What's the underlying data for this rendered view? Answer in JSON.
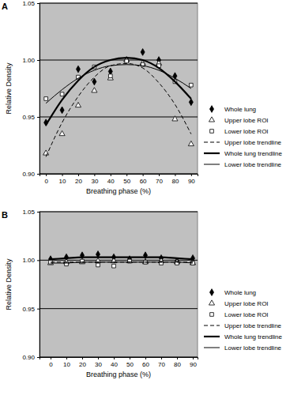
{
  "chart_data": [
    {
      "type": "scatter",
      "title": "A",
      "x_label": "Breathing phase (%)",
      "y_label": "Relative Density",
      "x": [
        0,
        10,
        20,
        30,
        40,
        50,
        60,
        70,
        80,
        90
      ],
      "xlim": [
        -4,
        94
      ],
      "xticks": [
        0,
        10,
        20,
        30,
        40,
        50,
        60,
        70,
        80,
        90
      ],
      "ylim": [
        0.9,
        1.05
      ],
      "yticks": [
        {
          "value": 0.9,
          "label": "0.90"
        },
        {
          "value": 0.95,
          "label": "0.95"
        },
        {
          "value": 1.0,
          "label": "1.00"
        },
        {
          "value": 1.05,
          "label": "1.05"
        }
      ],
      "grid": true,
      "legend": "right",
      "series": [
        {
          "name": "Whole lung",
          "type": "scatter",
          "marker": "diamond",
          "color": "#000000",
          "values": [
            0.945,
            0.956,
            0.992,
            0.981,
            0.99,
            1.0,
            1.007,
            1.0,
            0.986,
            0.963
          ]
        },
        {
          "name": "Upper lobe ROI",
          "type": "scatter",
          "marker": "triangle-open",
          "color": "#000000",
          "values": [
            0.918,
            0.935,
            0.96,
            0.973,
            0.984,
            1.0,
            0.997,
            0.997,
            0.948,
            0.926
          ]
        },
        {
          "name": "Lower lobe ROI",
          "type": "scatter",
          "marker": "square-open",
          "color": "#000000",
          "values": [
            0.966,
            0.97,
            0.985,
            0.994,
            0.986,
            0.999,
            0.996,
            0.995,
            0.981,
            0.978
          ]
        },
        {
          "name": "Upper lobe trendline",
          "type": "line",
          "line_style": "dashed",
          "color": "#000000",
          "values": [
            0.915,
            0.945,
            0.968,
            0.985,
            0.995,
            0.997,
            0.993,
            0.98,
            0.961,
            0.935
          ]
        },
        {
          "name": "Whole lung trendline",
          "type": "line",
          "line_style": "thick",
          "color": "#000000",
          "values": [
            0.943,
            0.965,
            0.982,
            0.994,
            1.0,
            1.002,
            1.0,
            0.993,
            0.981,
            0.966
          ]
        },
        {
          "name": "Lower lobe trendline",
          "type": "line",
          "line_style": "solid",
          "color": "#000000",
          "values": [
            0.962,
            0.974,
            0.984,
            0.991,
            0.995,
            0.996,
            0.995,
            0.991,
            0.984,
            0.975
          ]
        }
      ]
    },
    {
      "type": "scatter",
      "title": "B",
      "x_label": "Breathing phase (%)",
      "y_label": "Relative Density",
      "x": [
        0,
        10,
        20,
        30,
        40,
        50,
        60,
        70,
        80,
        90
      ],
      "xlim": [
        -7,
        93
      ],
      "xticks": [
        0,
        10,
        20,
        30,
        40,
        50,
        60,
        70,
        80,
        90
      ],
      "ylim": [
        0.9,
        1.05
      ],
      "yticks": [
        {
          "value": 0.9,
          "label": "0.90"
        },
        {
          "value": 0.95,
          "label": "0.95"
        },
        {
          "value": 1.0,
          "label": "1.00"
        },
        {
          "value": 1.05,
          "label": "1.05"
        }
      ],
      "grid": true,
      "legend": "right",
      "series": [
        {
          "name": "Whole lung",
          "type": "scatter",
          "marker": "diamond",
          "color": "#000000",
          "values": [
            1.001,
            1.003,
            1.005,
            1.006,
            1.003,
            1.001,
            1.005,
            1.002,
            0.999,
            1.002
          ]
        },
        {
          "name": "Upper lobe ROI",
          "type": "scatter",
          "marker": "triangle-open",
          "color": "#000000",
          "values": [
            0.997,
            0.998,
            0.998,
            0.999,
            0.999,
            0.999,
            0.998,
            0.999,
            0.998,
            0.997
          ]
        },
        {
          "name": "Lower lobe ROI",
          "type": "scatter",
          "marker": "square-open",
          "color": "#000000",
          "values": [
            0.998,
            0.996,
            0.999,
            0.995,
            0.994,
            0.999,
            0.998,
            0.997,
            0.997,
            0.997
          ]
        },
        {
          "name": "Upper lobe trendline",
          "type": "line",
          "line_style": "dashed",
          "color": "#000000",
          "values": [
            0.998,
            0.998,
            0.998,
            0.998,
            0.998,
            0.998,
            0.998,
            0.998,
            0.998,
            0.998
          ]
        },
        {
          "name": "Whole lung trendline",
          "type": "line",
          "line_style": "thick",
          "color": "#000000",
          "values": [
            1.001,
            1.002,
            1.003,
            1.003,
            1.003,
            1.003,
            1.003,
            1.003,
            1.002,
            1.001
          ]
        },
        {
          "name": "Lower lobe trendline",
          "type": "line",
          "line_style": "solid",
          "color": "#000000",
          "values": [
            0.997,
            0.997,
            0.998,
            0.998,
            0.998,
            0.998,
            0.998,
            0.998,
            0.998,
            0.997
          ]
        }
      ]
    }
  ]
}
